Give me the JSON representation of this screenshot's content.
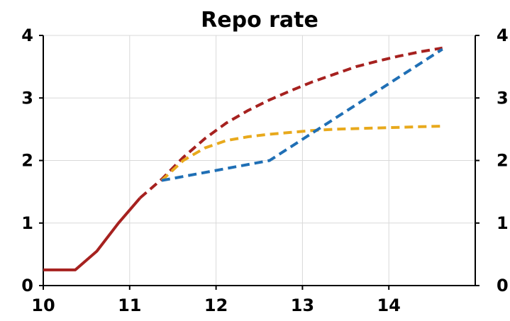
{
  "chart_data": {
    "type": "line",
    "title": "Repo rate",
    "xlabel": "",
    "ylabel": "",
    "xlim": [
      10,
      15
    ],
    "ylim": [
      0,
      4
    ],
    "xticks": [
      "10",
      "11",
      "12",
      "13",
      "14"
    ],
    "yticks": [
      "0",
      "1",
      "2",
      "3",
      "4"
    ],
    "right_axis_ticks": [
      "0",
      "1",
      "2",
      "3",
      "4"
    ],
    "grid": true,
    "legend": "none",
    "series": [
      {
        "color": "#a6211f",
        "style": "solid",
        "x": [
          10.0,
          10.15,
          10.37,
          10.62,
          10.87,
          11.12
        ],
        "y": [
          0.25,
          0.25,
          0.25,
          0.55,
          1.0,
          1.4
        ]
      },
      {
        "color": "#a6211f",
        "style": "dashed",
        "x": [
          11.12,
          11.37,
          11.62,
          11.87,
          12.12,
          12.37,
          12.62,
          12.87,
          13.12,
          13.37,
          13.62,
          13.87,
          14.12,
          14.37,
          14.62
        ],
        "y": [
          1.4,
          1.7,
          2.05,
          2.35,
          2.6,
          2.8,
          2.97,
          3.12,
          3.26,
          3.38,
          3.5,
          3.59,
          3.67,
          3.74,
          3.8
        ]
      },
      {
        "color": "#e8a91c",
        "style": "dashed",
        "x": [
          11.37,
          11.62,
          11.87,
          12.12,
          12.37,
          12.62,
          12.87,
          13.12,
          13.37,
          13.62,
          13.87,
          14.12,
          14.37,
          14.62
        ],
        "y": [
          1.68,
          2.0,
          2.2,
          2.32,
          2.38,
          2.42,
          2.45,
          2.48,
          2.5,
          2.51,
          2.52,
          2.53,
          2.54,
          2.55
        ]
      },
      {
        "color": "#1f6fb5",
        "style": "dashed",
        "x": [
          11.37,
          12.62,
          14.62
        ],
        "y": [
          1.68,
          2.0,
          3.78
        ]
      }
    ]
  }
}
